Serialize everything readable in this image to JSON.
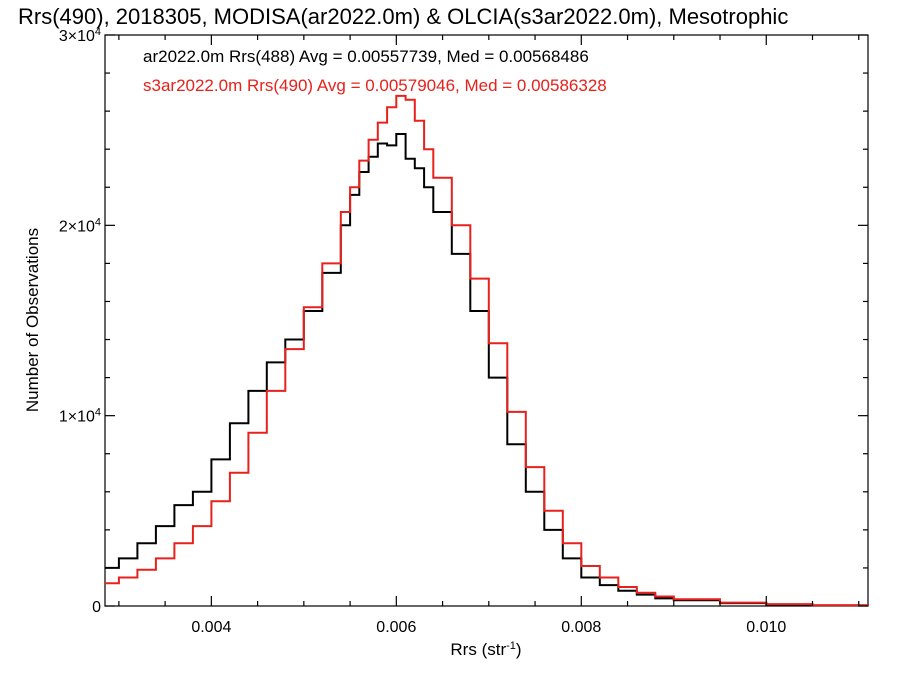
{
  "chart_data": {
    "type": "line",
    "title": "Rrs(490), 2018305, MODISA(ar2022.0m) & OLCIA(s3ar2022.0m), Mesotrophic",
    "xlabel": "Rrs (str",
    "xlabel_sup": "-1",
    "xlabel_end": ")",
    "ylabel": "Number of Observations",
    "xlim": [
      0.00285,
      0.0111
    ],
    "ylim": [
      0,
      30000
    ],
    "xticks": [
      {
        "value": 0.004,
        "label": "0.004"
      },
      {
        "value": 0.006,
        "label": "0.006"
      },
      {
        "value": 0.008,
        "label": "0.008"
      },
      {
        "value": 0.01,
        "label": "0.010"
      }
    ],
    "yticks": [
      {
        "value": 0,
        "label": "0",
        "exp": ""
      },
      {
        "value": 10000,
        "label": "1×10",
        "exp": "4"
      },
      {
        "value": 20000,
        "label": "2×10",
        "exp": "4"
      },
      {
        "value": 30000,
        "label": "3×10",
        "exp": "4"
      }
    ],
    "line_style": "step",
    "grid": false,
    "legend_position": "top-left",
    "series": [
      {
        "name": "ar2022.0m Rrs(488) Avg = 0.00557739, Med = 0.00568486",
        "color": "#000000",
        "x": [
          0.00285,
          0.003,
          0.0032,
          0.0034,
          0.0036,
          0.0038,
          0.004,
          0.0042,
          0.0044,
          0.0046,
          0.0048,
          0.005,
          0.0052,
          0.0054,
          0.0055,
          0.0056,
          0.0057,
          0.0058,
          0.0059,
          0.006,
          0.0061,
          0.0062,
          0.0063,
          0.0064,
          0.0066,
          0.0068,
          0.007,
          0.0072,
          0.0074,
          0.0076,
          0.0078,
          0.008,
          0.0082,
          0.0084,
          0.0086,
          0.0088,
          0.009,
          0.0095,
          0.01,
          0.0105,
          0.0111
        ],
        "y": [
          2000,
          2500,
          3300,
          4200,
          5300,
          6000,
          7700,
          9600,
          11300,
          12800,
          14000,
          15500,
          17500,
          20000,
          21600,
          22800,
          23600,
          24300,
          24200,
          24800,
          23500,
          23000,
          22000,
          20700,
          18500,
          15500,
          12000,
          8500,
          6000,
          4000,
          2500,
          1500,
          1100,
          800,
          600,
          400,
          300,
          150,
          80,
          30,
          10
        ]
      },
      {
        "name": "s3ar2022.0m Rrs(490) Avg = 0.00579046, Med = 0.00586328",
        "color": "#e8211c",
        "x": [
          0.00285,
          0.003,
          0.0032,
          0.0034,
          0.0036,
          0.0038,
          0.004,
          0.0042,
          0.0044,
          0.0046,
          0.0048,
          0.005,
          0.0052,
          0.0054,
          0.0055,
          0.0056,
          0.0057,
          0.0058,
          0.0059,
          0.006,
          0.0061,
          0.0062,
          0.0063,
          0.0064,
          0.0066,
          0.0068,
          0.007,
          0.0072,
          0.0074,
          0.0076,
          0.0078,
          0.008,
          0.0082,
          0.0084,
          0.0086,
          0.0088,
          0.009,
          0.0095,
          0.01,
          0.0105,
          0.0111
        ],
        "y": [
          1200,
          1500,
          1900,
          2500,
          3300,
          4200,
          5500,
          7000,
          9100,
          11300,
          13500,
          15700,
          18000,
          20700,
          22000,
          23400,
          24500,
          25400,
          26200,
          26800,
          26600,
          25500,
          24000,
          22500,
          20000,
          17200,
          13800,
          10200,
          7300,
          5000,
          3300,
          2100,
          1500,
          1000,
          700,
          500,
          350,
          180,
          100,
          40,
          15
        ]
      }
    ]
  }
}
